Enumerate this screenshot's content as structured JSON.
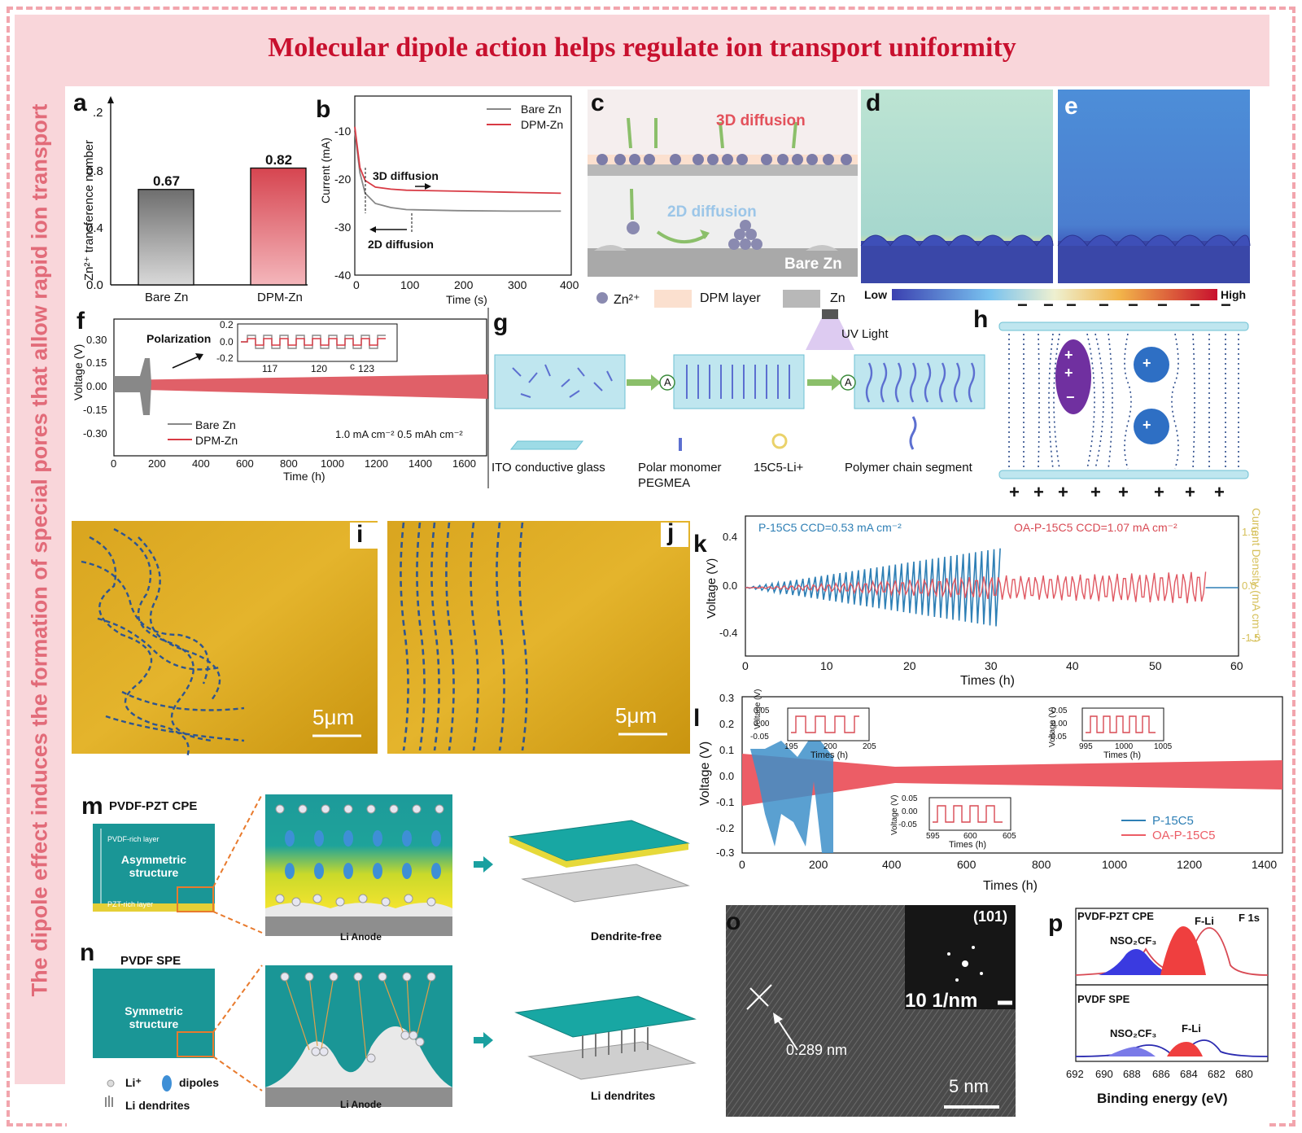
{
  "title": "Molecular dipole action helps regulate ion transport uniformity",
  "side_title": "The dipole effect induces the formation of special pores that allow rapid ion transport",
  "letters": {
    "a": "a",
    "b": "b",
    "c": "c",
    "d": "d",
    "e": "e",
    "f": "f",
    "g": "g",
    "h": "h",
    "i": "i",
    "j": "j",
    "k": "k",
    "l": "l",
    "m": "m",
    "n": "n",
    "o": "o",
    "p": "p"
  },
  "panel_a": {
    "ylabel": "Zn²⁺ transference number",
    "ticks": [
      "0.0",
      "0.4",
      "0.8",
      ".2"
    ]
  },
  "panel_b": {
    "xlabel": "Time (s)",
    "ylabel": "Current (mA)",
    "xticks": [
      "0",
      "100",
      "200",
      "300",
      "400"
    ],
    "yticks": [
      "-10",
      "-20",
      "-30",
      "-40"
    ],
    "legend": [
      "Bare Zn",
      "DPM-Zn"
    ],
    "ann3d": "3D diffusion",
    "ann2d": "2D diffusion"
  },
  "panel_c": {
    "lab3d": "3D diffusion",
    "lab2d": "2D diffusion",
    "bare": "Bare Zn",
    "leg_zn2": "Zn²⁺",
    "leg_dpm": "DPM layer",
    "leg_zn": "Zn"
  },
  "colorbar": {
    "low": "Low",
    "high": "High"
  },
  "panel_f": {
    "xlabel": "Time (h)",
    "ylabel": "Voltage (V)",
    "xticks": [
      "0",
      "200",
      "400",
      "600",
      "800",
      "1000",
      "1200",
      "1400",
      "1600"
    ],
    "yticks": [
      "0.30",
      "0.15",
      "0.00",
      "-0.15",
      "-0.30"
    ],
    "legend": [
      "Bare Zn",
      "DPM-Zn"
    ],
    "pol": "Polarization",
    "cond": "1.0 mA cm⁻² 0.5 mAh cm⁻²",
    "inset_x": [
      "117",
      "120",
      "123"
    ],
    "inset_y": [
      "0.2",
      "0.0",
      "-0.2"
    ],
    "inset_c": "c"
  },
  "panel_g": {
    "uv": "UV Light",
    "l1": "ITO conductive glass",
    "l2a": "Polar monomer",
    "l2b": "PEGMEA",
    "l3": "15C5-Li+",
    "l4": "Polymer chain segment",
    "amp": "A"
  },
  "panel_h": {
    "minus": "−",
    "plus": "+"
  },
  "scale": {
    "i": "5μm",
    "j": "5μm"
  },
  "panel_k": {
    "xlabel": "Times (h)",
    "ylabel": "Voltage (V)",
    "y2label": "Current Density (mA cm⁻²)",
    "xticks": [
      "0",
      "10",
      "20",
      "30",
      "40",
      "50",
      "60"
    ],
    "yticks": [
      "0.4",
      "0.0",
      "-0.4"
    ],
    "y2ticks": [
      "1.5",
      "0.0",
      "-1.5"
    ],
    "lab1": "P-15C5  CCD=0.53 mA cm⁻²",
    "lab2": "OA-P-15C5  CCD=1.07 mA cm⁻²"
  },
  "panel_l": {
    "xlabel": "Times (h)",
    "ylabel": "Voltage (V)",
    "xticks": [
      "0",
      "200",
      "400",
      "600",
      "800",
      "1000",
      "1200",
      "1400"
    ],
    "yticks": [
      "0.3",
      "0.2",
      "0.1",
      "0.0",
      "-0.1",
      "-0.2",
      "-0.3"
    ],
    "legend": [
      "P-15C5",
      "OA-P-15C5"
    ],
    "in1": {
      "x": [
        "195",
        "200",
        "205"
      ],
      "y": [
        "0.05",
        "0.00",
        "-0.05"
      ],
      "xl": "Times (h)",
      "yl": "Voltage (V)"
    },
    "in2": {
      "x": [
        "995",
        "1000",
        "1005"
      ],
      "y": [
        "0.05",
        "0.00",
        "-0.05"
      ],
      "xl": "Times (h)",
      "yl": "Voltage (V)"
    },
    "in3": {
      "x": [
        "595",
        "600",
        "605"
      ],
      "y": [
        "0.05",
        "0.00",
        "-0.05"
      ],
      "xl": "Times (h)",
      "yl": "Voltage (V)"
    }
  },
  "panel_m": {
    "head": "PVDF-PZT CPE",
    "rich1": "PVDF-rich layer",
    "struct": "Asymmetric structure",
    "rich2": "PZT-rich layer",
    "anode": "Li Anode",
    "result": "Dendrite-free"
  },
  "panel_n": {
    "head": "PVDF SPE",
    "struct": "Symmetric structure",
    "anode": "Li Anode",
    "result": "Li dendrites",
    "leg_li": "Li⁺",
    "leg_dip": "dipoles",
    "leg_den": "Li dendrites"
  },
  "panel_o": {
    "d": "0.289 nm",
    "plane": "(101)",
    "recip": "10 1/nm",
    "scale": "5 nm"
  },
  "panel_p": {
    "top": "PVDF-PZT CPE",
    "f1s": "F 1s",
    "nso": "NSO₂CF₃",
    "fli": "F-Li",
    "bottom": "PVDF SPE",
    "nso2": "NSO₂CF₃",
    "fli2": "F-Li",
    "xlabel": "Binding energy (eV)",
    "xticks": [
      "692",
      "690",
      "688",
      "686",
      "684",
      "682",
      "680"
    ]
  },
  "chart_data": [
    {
      "type": "bar",
      "categories": [
        "Bare Zn",
        "DPM-Zn"
      ],
      "values": [
        0.67,
        0.82
      ],
      "ylabel": "Zn²⁺ transference number",
      "ylim": [
        0,
        1.2
      ]
    },
    {
      "type": "line",
      "xlabel": "Time (s)",
      "ylabel": "Current (mA)",
      "xlim": [
        0,
        420
      ],
      "ylim": [
        -40,
        -5
      ],
      "series": [
        {
          "name": "Bare Zn",
          "x": [
            0,
            10,
            20,
            40,
            70,
            100,
            200,
            300,
            400
          ],
          "y": [
            -12,
            -20,
            -24,
            -26,
            -26.8,
            -27.2,
            -27.4,
            -27.5,
            -27.5
          ]
        },
        {
          "name": "DPM-Zn",
          "x": [
            0,
            10,
            20,
            40,
            70,
            100,
            200,
            300,
            400
          ],
          "y": [
            -11,
            -19,
            -21.5,
            -22.8,
            -23.2,
            -23.4,
            -23.6,
            -23.8,
            -24
          ]
        }
      ]
    },
    {
      "type": "area",
      "xlabel": "Time (h)",
      "ylabel": "Voltage (V)",
      "xlim": [
        0,
        1700
      ],
      "ylim": [
        -0.4,
        0.4
      ],
      "series": [
        {
          "name": "Bare Zn",
          "x": [
            0,
            150,
            170,
            200
          ],
          "y": [
            0.05,
            0.05,
            0.2,
            0.05
          ]
        },
        {
          "name": "DPM-Zn",
          "x": [
            0,
            400,
            800,
            1200,
            1600,
            1700
          ],
          "y": [
            0.03,
            0.035,
            0.04,
            0.045,
            0.06,
            0.06
          ]
        }
      ]
    }
  ]
}
